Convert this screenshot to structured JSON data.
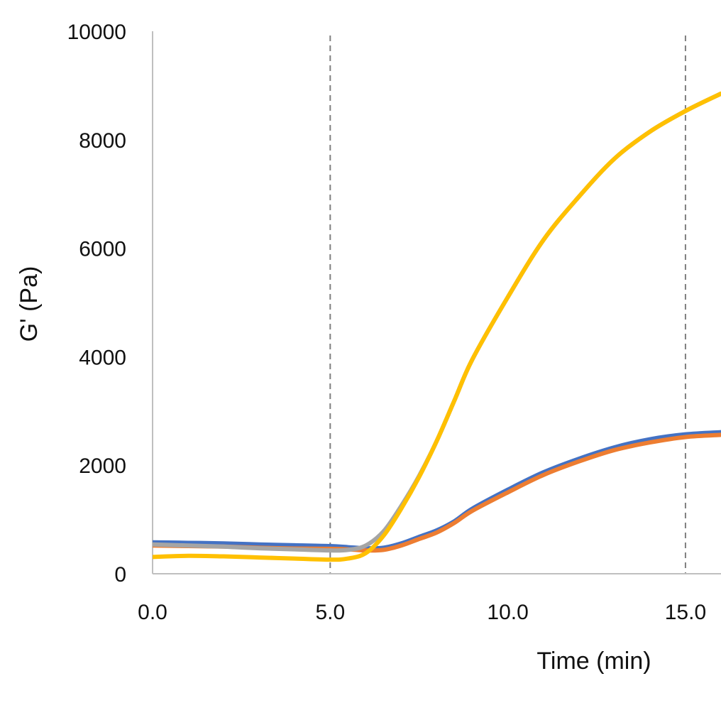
{
  "chart_data": {
    "type": "line",
    "title": "",
    "xlabel": "Time (min)",
    "ylabel": "G' (Pa)",
    "xlim": [
      0,
      16
    ],
    "ylim": [
      0,
      10000
    ],
    "x_tick_labels": [
      "0.0",
      "5.0",
      "10.0",
      "15.0"
    ],
    "x_tick_values": [
      0,
      5,
      10,
      15
    ],
    "y_tick_labels": [
      "0",
      "2000",
      "4000",
      "6000",
      "8000",
      "10000"
    ],
    "y_tick_values": [
      0,
      2000,
      4000,
      6000,
      8000,
      10000
    ],
    "vertical_reference_lines": [
      5,
      15
    ],
    "reference_line_color": "#7f7f7f",
    "axis_color": "#bfbfbf",
    "grid": false,
    "legend": "none",
    "series": [
      {
        "color": "#4472c4",
        "points": [
          [
            0,
            580
          ],
          [
            1,
            570
          ],
          [
            2,
            560
          ],
          [
            3,
            540
          ],
          [
            4,
            525
          ],
          [
            5,
            510
          ],
          [
            5.5,
            490
          ],
          [
            6,
            470
          ],
          [
            6.5,
            480
          ],
          [
            7,
            560
          ],
          [
            7.5,
            680
          ],
          [
            8,
            800
          ],
          [
            8.5,
            970
          ],
          [
            9,
            1200
          ],
          [
            10,
            1550
          ],
          [
            11,
            1870
          ],
          [
            12,
            2120
          ],
          [
            13,
            2330
          ],
          [
            14,
            2480
          ],
          [
            15,
            2570
          ],
          [
            16,
            2610
          ]
        ]
      },
      {
        "color": "#ed7d31",
        "points": [
          [
            0,
            520
          ],
          [
            1,
            510
          ],
          [
            2,
            500
          ],
          [
            3,
            480
          ],
          [
            4,
            465
          ],
          [
            5,
            460
          ],
          [
            5.5,
            450
          ],
          [
            6,
            430
          ],
          [
            6.5,
            440
          ],
          [
            7,
            520
          ],
          [
            7.5,
            640
          ],
          [
            8,
            760
          ],
          [
            8.5,
            940
          ],
          [
            9,
            1160
          ],
          [
            10,
            1500
          ],
          [
            11,
            1820
          ],
          [
            12,
            2070
          ],
          [
            13,
            2280
          ],
          [
            14,
            2420
          ],
          [
            15,
            2520
          ],
          [
            16,
            2560
          ]
        ]
      },
      {
        "color": "#a5a5a5",
        "points": [
          [
            0,
            540
          ],
          [
            1,
            520
          ],
          [
            2,
            500
          ],
          [
            3,
            470
          ],
          [
            4,
            450
          ],
          [
            5,
            430
          ],
          [
            5.5,
            440
          ],
          [
            6,
            520
          ],
          [
            6.5,
            780
          ],
          [
            7,
            1250
          ],
          [
            7.5,
            1800
          ],
          [
            8,
            2450
          ],
          [
            8.5,
            3200
          ],
          [
            9,
            3950
          ],
          [
            10,
            5100
          ],
          [
            11,
            6150
          ],
          [
            12,
            6950
          ],
          [
            13,
            7650
          ],
          [
            14,
            8150
          ],
          [
            15,
            8530
          ],
          [
            16,
            8850
          ]
        ]
      },
      {
        "color": "#ffc000",
        "points": [
          [
            0,
            310
          ],
          [
            1,
            330
          ],
          [
            2,
            320
          ],
          [
            3,
            300
          ],
          [
            4,
            280
          ],
          [
            5,
            260
          ],
          [
            5.5,
            280
          ],
          [
            6,
            380
          ],
          [
            6.5,
            700
          ],
          [
            7,
            1200
          ],
          [
            7.5,
            1780
          ],
          [
            8,
            2450
          ],
          [
            8.5,
            3200
          ],
          [
            9,
            3950
          ],
          [
            10,
            5100
          ],
          [
            11,
            6150
          ],
          [
            12,
            6950
          ],
          [
            13,
            7650
          ],
          [
            14,
            8150
          ],
          [
            15,
            8530
          ],
          [
            16,
            8850
          ]
        ]
      }
    ]
  }
}
